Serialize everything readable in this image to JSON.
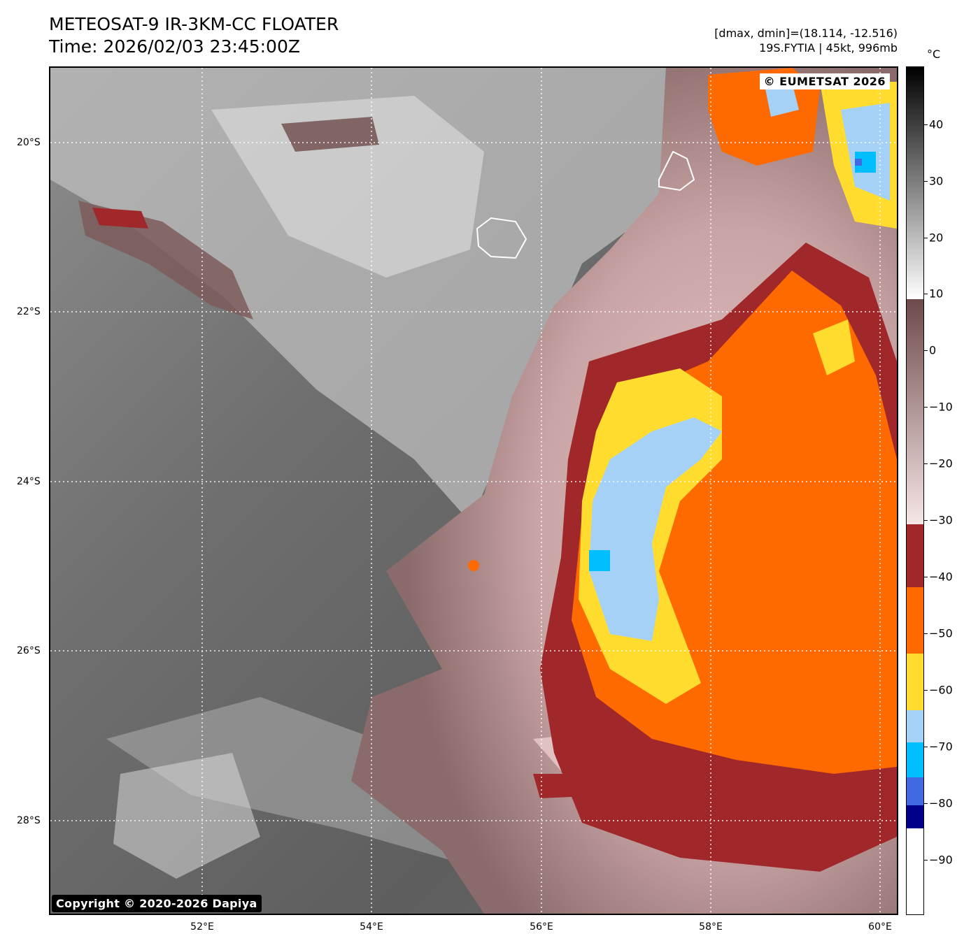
{
  "header": {
    "title_line1": "METEOSAT-9 IR-3KM-CC FLOATER",
    "title_line2": "Time: 2026/02/03 23:45:00Z",
    "info_line1": "[dmax, dmin]=(18.114, -12.516)",
    "info_line2": "19S.FYTIA | 45kt, 996mb"
  },
  "map": {
    "credit_top": "© EUMETSAT 2026",
    "credit_bottom": "Copyright © 2020-2026 Dapiya",
    "lat_labels": [
      "20°S",
      "22°S",
      "24°S",
      "26°S",
      "28°S"
    ],
    "lon_labels": [
      "52°E",
      "54°E",
      "56°E",
      "58°E",
      "60°E"
    ]
  },
  "colorbar": {
    "unit": "°C",
    "ticks": [
      "40",
      "30",
      "20",
      "10",
      "0",
      "−10",
      "−20",
      "−30",
      "−40",
      "−50",
      "−60",
      "−70",
      "−80",
      "−90"
    ],
    "colors": {
      "tan_dark": "#a0282a",
      "orange": "#ff6a00",
      "yellow": "#ffdc2e",
      "light_blue": "#a6d1f6",
      "cyan": "#00bfff",
      "royal_blue": "#4169e1",
      "navy": "#00008b",
      "brown_warm": "#6e4a4a",
      "pink_cold": "#f2d4d4"
    }
  }
}
